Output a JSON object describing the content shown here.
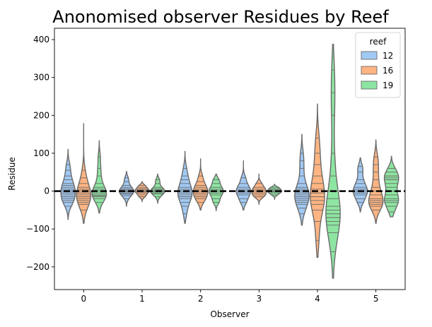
{
  "chart_data": {
    "type": "violin",
    "title": "Anonomised observer Residues by Reef",
    "xlabel": "Observer",
    "ylabel": "Residue",
    "ylim": [
      -260,
      430
    ],
    "yticks": [
      -200,
      -100,
      0,
      100,
      200,
      300,
      400
    ],
    "ytick_labels": [
      "−200",
      "−100",
      "0",
      "100",
      "200",
      "300",
      "400"
    ],
    "categories": [
      "0",
      "1",
      "2",
      "3",
      "4",
      "5"
    ],
    "reference_line": 0,
    "legend": {
      "title": "reef",
      "position": "top-right"
    },
    "series": [
      {
        "name": "12",
        "color": "#a1c9f4",
        "violins": [
          {
            "min": -75,
            "max": 110,
            "obs": [
              -40,
              -30,
              -25,
              -20,
              -15,
              -10,
              -5,
              0,
              5,
              10,
              15,
              20,
              30,
              40,
              55,
              70
            ]
          },
          {
            "min": -40,
            "max": 52,
            "obs": [
              -20,
              -12,
              -8,
              -5,
              -2,
              0,
              3,
              6,
              10,
              15,
              25,
              35
            ]
          },
          {
            "min": -85,
            "max": 105,
            "obs": [
              -60,
              -40,
              -30,
              -20,
              -15,
              -10,
              -5,
              0,
              5,
              10,
              20,
              30,
              40,
              60
            ]
          },
          {
            "min": -50,
            "max": 80,
            "obs": [
              -30,
              -20,
              -10,
              -5,
              0,
              5,
              10,
              20,
              35
            ]
          },
          {
            "min": -90,
            "max": 150,
            "obs": [
              -60,
              -45,
              -35,
              -30,
              -25,
              -20,
              -15,
              -10,
              -5,
              0,
              5,
              10,
              20,
              40,
              60,
              80,
              100
            ]
          },
          {
            "min": -55,
            "max": 88,
            "obs": [
              -30,
              -20,
              -10,
              -5,
              0,
              5,
              10,
              20,
              30,
              50,
              65
            ]
          }
        ]
      },
      {
        "name": "16",
        "color": "#ffb482",
        "violins": [
          {
            "min": -85,
            "max": 178,
            "obs": [
              -50,
              -35,
              -30,
              -25,
              -20,
              -15,
              -10,
              -5,
              0,
              5,
              10,
              20,
              35,
              55
            ]
          },
          {
            "min": -28,
            "max": 25,
            "obs": [
              -15,
              -10,
              -5,
              -2,
              0,
              3,
              6,
              10,
              15
            ]
          },
          {
            "min": -50,
            "max": 85,
            "obs": [
              -30,
              -20,
              -15,
              -10,
              -5,
              0,
              5,
              10,
              15,
              25,
              40
            ]
          },
          {
            "min": -35,
            "max": 45,
            "obs": [
              -15,
              -10,
              -5,
              0,
              5,
              10,
              20
            ]
          },
          {
            "min": -175,
            "max": 230,
            "obs": [
              -130,
              -80,
              -50,
              -35,
              -25,
              -15,
              -5,
              5,
              20,
              40,
              70,
              100,
              140
            ]
          },
          {
            "min": -85,
            "max": 135,
            "obs": [
              -50,
              -40,
              -35,
              -30,
              -25,
              -20,
              -10,
              0,
              10,
              30,
              50,
              70,
              90
            ]
          }
        ]
      },
      {
        "name": "19",
        "color": "#8de5a1",
        "violins": [
          {
            "min": -58,
            "max": 133,
            "obs": [
              -30,
              -20,
              -15,
              -12,
              -10,
              -5,
              0,
              5,
              10,
              20,
              40,
              60,
              90
            ]
          },
          {
            "min": -32,
            "max": 45,
            "obs": [
              -15,
              -8,
              -5,
              -2,
              0,
              3,
              6,
              10,
              20,
              30
            ]
          },
          {
            "min": -52,
            "max": 45,
            "obs": [
              -30,
              -20,
              -10,
              -5,
              0,
              5,
              10,
              20,
              30
            ]
          },
          {
            "min": -22,
            "max": 18,
            "obs": [
              -10,
              -5,
              -2,
              0,
              3,
              6,
              10
            ]
          },
          {
            "min": -230,
            "max": 388,
            "obs": [
              -160,
              -110,
              -90,
              -80,
              -70,
              -60,
              -50,
              -40,
              -20,
              0,
              40,
              100,
              200,
              260,
              320
            ]
          },
          {
            "min": -68,
            "max": 92,
            "obs": [
              -55,
              -40,
              -30,
              -25,
              -20,
              -10,
              0,
              10,
              20,
              30,
              35,
              40,
              50,
              60
            ]
          }
        ]
      }
    ]
  }
}
